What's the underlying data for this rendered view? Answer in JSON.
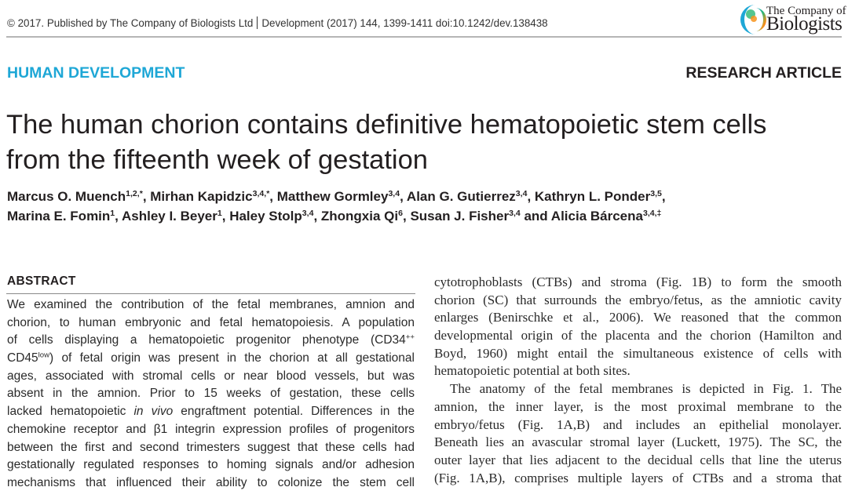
{
  "header": {
    "copyright": "© 2017. Published by The Company of Biologists Ltd",
    "journal_citation": "Development (2017) 144, 1399-1411 doi:10.1242/dev.138438",
    "logo_line1": "The Company of",
    "logo_line2": "Biologists"
  },
  "section_label": "HUMAN DEVELOPMENT",
  "article_type": "RESEARCH ARTICLE",
  "title_lines": [
    "The human chorion contains definitive hematopoietic stem cells",
    "from the fifteenth week of gestation"
  ],
  "authors_lines": [
    [
      {
        "name": "Marcus O. Muench",
        "sup": "1,2,*",
        "sep": ", "
      },
      {
        "name": "Mirhan Kapidzic",
        "sup": "3,4,*",
        "sep": ", "
      },
      {
        "name": "Matthew Gormley",
        "sup": "3,4",
        "sep": ", "
      },
      {
        "name": "Alan G. Gutierrez",
        "sup": "3,4",
        "sep": ", "
      },
      {
        "name": "Kathryn L. Ponder",
        "sup": "3,5",
        "sep": ","
      }
    ],
    [
      {
        "name": "Marina E. Fomin",
        "sup": "1",
        "sep": ", "
      },
      {
        "name": "Ashley I. Beyer",
        "sup": "1",
        "sep": ", "
      },
      {
        "name": "Haley Stolp",
        "sup": "3,4",
        "sep": ", "
      },
      {
        "name": "Zhongxia Qi",
        "sup": "6",
        "sep": ", "
      },
      {
        "name": "Susan J. Fisher",
        "sup": "3,4",
        "sep": " and "
      },
      {
        "name": "Alicia Bárcena",
        "sup": "3,4,‡",
        "sep": ""
      }
    ]
  ],
  "abstract": {
    "heading": "ABSTRACT",
    "lines": [
      [
        {
          "t": "We examined the contribution of the fetal membranes, amnion and"
        }
      ],
      [
        {
          "t": "chorion, to human embryonic and fetal hematopoiesis. A population"
        }
      ],
      [
        {
          "t": "of cells displaying a hematopoietic progenitor phenotype (CD34"
        },
        {
          "t": "++",
          "s": "sup"
        }
      ],
      [
        {
          "t": "CD45"
        },
        {
          "t": "low",
          "s": "sup"
        },
        {
          "t": ") of fetal origin was present in the chorion at all gestational"
        }
      ],
      [
        {
          "t": "ages, associated with stromal cells or near blood vessels, but was"
        }
      ],
      [
        {
          "t": "absent in the amnion. Prior to 15 weeks of gestation, these cells"
        }
      ],
      [
        {
          "t": "lacked hematopoietic "
        },
        {
          "t": "in vivo",
          "s": "i"
        },
        {
          "t": " engraftment potential. Differences in the"
        }
      ],
      [
        {
          "t": "chemokine receptor and β1 integrin expression profiles of progenitors"
        }
      ],
      [
        {
          "t": "between the first and second trimesters suggest that these cells had"
        }
      ],
      [
        {
          "t": "gestationally regulated responses to homing signals and/or adhesion"
        }
      ],
      [
        {
          "t": "mechanisms that influenced their ability to colonize the stem cell"
        }
      ]
    ]
  },
  "body": {
    "lines": [
      {
        "t": "cytotrophoblasts (CTBs) and stroma (Fig. 1B) to form the smooth"
      },
      {
        "t": "chorion (SC) that surrounds the embryo/fetus, as the amniotic cavity"
      },
      {
        "t": "enlarges (Benirschke et al., 2006). We reasoned that the common"
      },
      {
        "t": "developmental origin of the placenta and the chorion (Hamilton and"
      },
      {
        "t": "Boyd, 1960) might entail the simultaneous existence of cells with"
      },
      {
        "t": "hematopoietic potential at both sites.",
        "last": true
      },
      {
        "t": "The anatomy of the fetal membranes is depicted in Fig. 1. The",
        "indent": true
      },
      {
        "t": "amnion, the inner layer, is the most proximal membrane to the"
      },
      {
        "t": "embryo/fetus (Fig. 1A,B) and includes an epithelial monolayer."
      },
      {
        "t": "Beneath lies an avascular stromal layer (Luckett, 1975). The SC, the"
      },
      {
        "t": "outer layer that lies adjacent to the decidual cells that line the uterus"
      },
      {
        "t": "(Fig. 1A,B), comprises multiple layers of CTBs and a stroma that"
      }
    ]
  },
  "colors": {
    "section_accent": "#1ea7d6",
    "text": "#231f20"
  }
}
